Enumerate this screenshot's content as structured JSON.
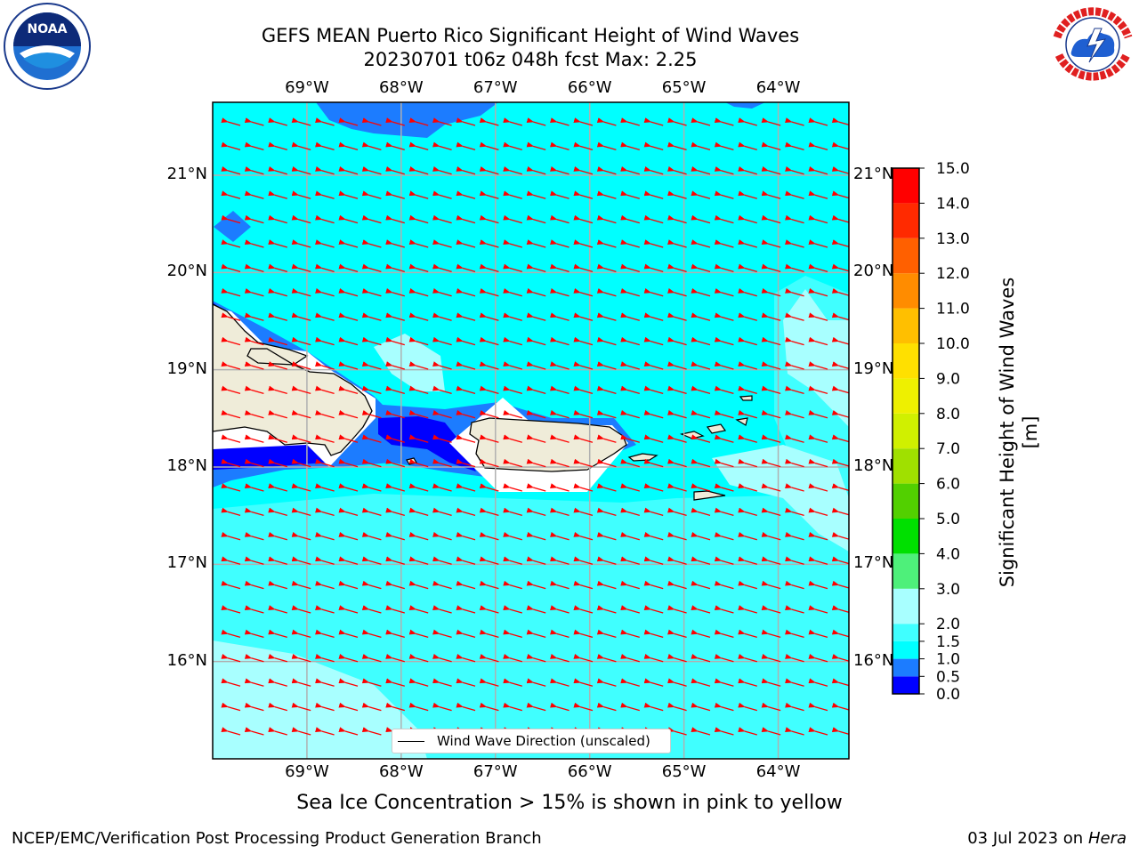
{
  "title": {
    "line1": "GEFS MEAN Puerto Rico Significant Height of Wind Waves",
    "line2": "20230701 t06z 048h fcst   Max: 2.25"
  },
  "axes": {
    "lon_labels": [
      "69°W",
      "68°W",
      "67°W",
      "66°W",
      "65°W",
      "64°W"
    ],
    "lat_labels": [
      "21°N",
      "20°N",
      "19°N",
      "18°N",
      "17°N",
      "16°N"
    ],
    "lon_values": [
      -69,
      -68,
      -67,
      -66,
      -65,
      -64
    ],
    "lat_values": [
      21,
      20,
      19,
      18,
      17,
      16
    ],
    "lon_range": [
      -70.0,
      -63.25
    ],
    "lat_range": [
      15.0,
      21.75
    ],
    "grid": true
  },
  "colorbar": {
    "title": "Significant Height of Wind Waves [m]",
    "tick_labels": [
      "0.0",
      "0.5",
      "1.0",
      "1.5",
      "2.0",
      "3.0",
      "4.0",
      "5.0",
      "6.0",
      "7.0",
      "8.0",
      "9.0",
      "10.0",
      "11.0",
      "12.0",
      "13.0",
      "14.0",
      "15.0"
    ],
    "levels": [
      0,
      0.5,
      1,
      1.5,
      2,
      3,
      4,
      5,
      6,
      7,
      8,
      9,
      10,
      11,
      12,
      13,
      14,
      15
    ],
    "colors": [
      "#0000ff",
      "#1c7cff",
      "#00ffff",
      "#40ffff",
      "#a8ffff",
      "#4ef07a",
      "#00e000",
      "#52d000",
      "#a0e000",
      "#d0f000",
      "#eef000",
      "#ffe000",
      "#ffbf00",
      "#ff8c00",
      "#ff6000",
      "#ff2a00",
      "#ff0000"
    ]
  },
  "legend": {
    "label": "Wind Wave Direction (unscaled)"
  },
  "notes": {
    "sea_ice": "Sea Ice Concentration > 15% is shown in pink to yellow"
  },
  "footer": {
    "left": "NCEP/EMC/Verification Post Processing Product Generation Branch",
    "right_date": "03 Jul 2023 on ",
    "right_host": "Hera"
  },
  "logos": {
    "noaa": "NOAA",
    "nws": "NATIONAL WEATHER SERVICE"
  },
  "style": {
    "base_sea": "#00ffff",
    "land": "#efecd9",
    "arrow": "#ff0000",
    "grid": "#b0b0b0"
  }
}
